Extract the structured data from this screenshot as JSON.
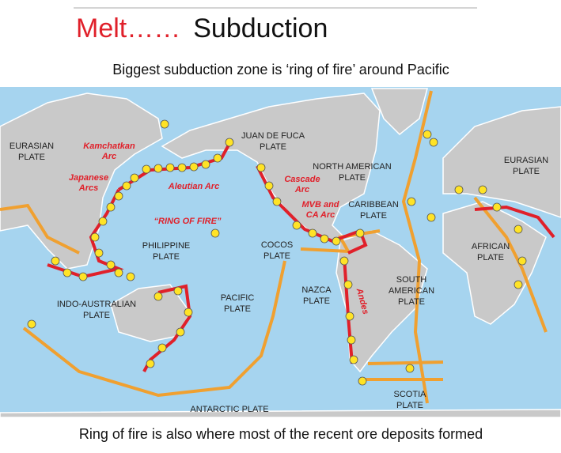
{
  "header": {
    "title_red": "Melt……",
    "title_black": "Subduction",
    "subtitle": "Biggest subduction zone is ‘ring of fire’ around Pacific"
  },
  "map": {
    "plate_labels": [
      [
        "EURASIAN",
        "PLATE"
      ],
      [
        "JUAN DE FUCA",
        "PLATE"
      ],
      [
        "NORTH AMERICAN",
        "PLATE"
      ],
      [
        "EURASIAN",
        "PLATE"
      ],
      [
        "CARIBBEAN",
        "PLATE"
      ],
      [
        "PHILIPPINE",
        "PLATE"
      ],
      [
        "COCOS",
        "PLATE"
      ],
      [
        "AFRICAN",
        "PLATE"
      ],
      [
        "NAZCA",
        "PLATE"
      ],
      [
        "SOUTH",
        "AMERICAN",
        "PLATE"
      ],
      [
        "PACIFIC",
        "PLATE"
      ],
      [
        "INDO-AUSTRALIAN",
        "PLATE"
      ],
      [
        "ANTARCTIC PLATE"
      ],
      [
        "SCOTIA",
        "PLATE"
      ]
    ],
    "arc_labels": [
      [
        "Kamchatkan",
        "Arc"
      ],
      [
        "Japanese",
        "Arcs"
      ],
      [
        "Aleutian Arc"
      ],
      [
        "“RING OF FIRE”"
      ],
      [
        "Cascade",
        "Arc"
      ],
      [
        "MVB and",
        "CA Arc"
      ],
      [
        "Andes"
      ]
    ]
  },
  "footer": {
    "caption": "Ring of fire is also where most of the recent ore deposits formed"
  }
}
